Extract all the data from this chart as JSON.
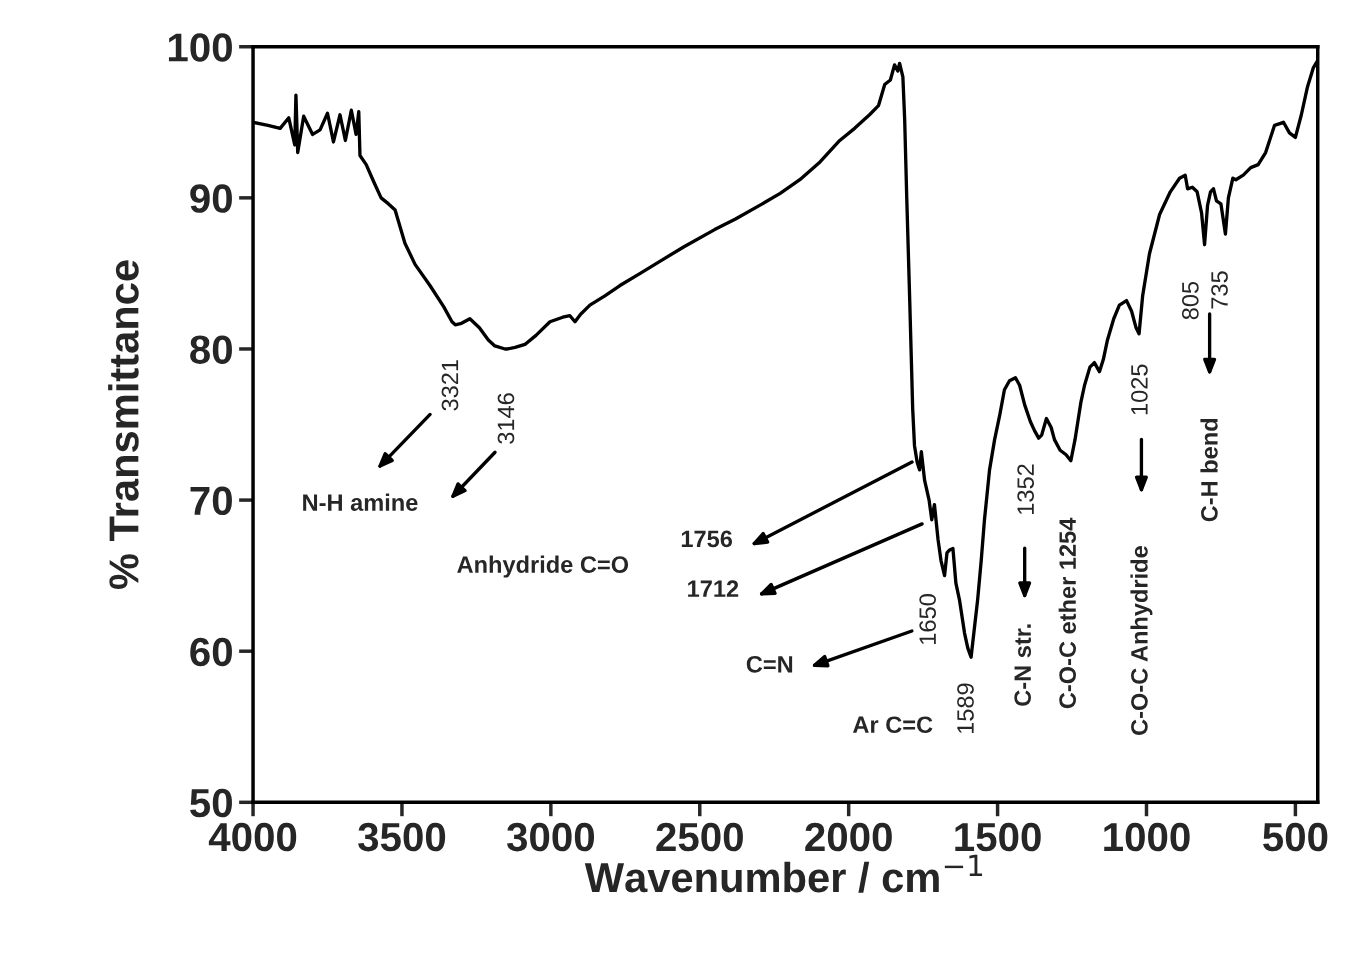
{
  "chart_data": {
    "type": "line",
    "xlabel": "Wavenumber / cm$^{−1}$",
    "ylabel": "% Transmittance",
    "xlim": [
      4000,
      425
    ],
    "ylim": [
      50,
      100
    ],
    "xticks": [
      4000,
      3500,
      3000,
      2500,
      2000,
      1500,
      1000,
      500
    ],
    "yticks": [
      50,
      60,
      70,
      80,
      90,
      100
    ],
    "grid": false,
    "marker": "none",
    "line_style": "solid",
    "series": [
      {
        "color": "#000000",
        "x": [
          4000,
          3950,
          3909,
          3880,
          3860,
          3856,
          3850,
          3830,
          3800,
          3775,
          3750,
          3730,
          3708,
          3690,
          3670,
          3654,
          3645,
          3641,
          3620,
          3600,
          3591,
          3570,
          3545,
          3523,
          3490,
          3456,
          3406,
          3360,
          3332,
          3321,
          3300,
          3272,
          3240,
          3210,
          3188,
          3154,
          3146,
          3120,
          3087,
          3050,
          3003,
          2960,
          2936,
          2919,
          2900,
          2869,
          2820,
          2768,
          2700,
          2634,
          2550,
          2450,
          2380,
          2299,
          2230,
          2164,
          2100,
          2030,
          1980,
          1930,
          1900,
          1879,
          1860,
          1846,
          1835,
          1829,
          1818,
          1812,
          1805,
          1795,
          1785,
          1779,
          1770,
          1762,
          1756,
          1745,
          1730,
          1721,
          1712,
          1700,
          1690,
          1678,
          1670,
          1661,
          1650,
          1640,
          1628,
          1611,
          1600,
          1589,
          1578,
          1567,
          1555,
          1544,
          1527,
          1510,
          1493,
          1477,
          1460,
          1440,
          1426,
          1409,
          1390,
          1376,
          1362,
          1352,
          1336,
          1320,
          1309,
          1290,
          1270,
          1254,
          1240,
          1220,
          1208,
          1190,
          1175,
          1158,
          1145,
          1131,
          1110,
          1091,
          1067,
          1050,
          1035,
          1025,
          1013,
          990,
          956,
          920,
          889,
          870,
          862,
          846,
          830,
          815,
          805,
          795,
          785,
          775,
          765,
          750,
          735,
          725,
          710,
          700,
          675,
          650,
          625,
          600,
          570,
          540,
          520,
          500,
          480,
          460,
          440,
          428
        ],
        "values": [
          95.0,
          94.8,
          94.6,
          95.3,
          93.5,
          96.8,
          93.0,
          95.4,
          94.2,
          94.5,
          95.6,
          93.7,
          95.5,
          93.8,
          95.8,
          94.2,
          95.7,
          92.8,
          92.2,
          91.3,
          90.9,
          90.0,
          89.6,
          89.2,
          87.0,
          85.6,
          84.2,
          82.8,
          81.8,
          81.6,
          81.7,
          82.0,
          81.4,
          80.6,
          80.2,
          80.0,
          80.0,
          80.1,
          80.3,
          80.9,
          81.8,
          82.1,
          82.2,
          81.8,
          82.3,
          82.9,
          83.5,
          84.2,
          85.0,
          85.8,
          86.8,
          87.9,
          88.6,
          89.5,
          90.3,
          91.2,
          92.3,
          93.8,
          94.6,
          95.5,
          96.1,
          97.5,
          97.8,
          98.8,
          98.4,
          98.9,
          98.0,
          95.2,
          90.0,
          83.2,
          76.0,
          73.6,
          72.5,
          72.0,
          73.2,
          71.3,
          70.0,
          68.7,
          69.7,
          67.4,
          66.0,
          65.0,
          66.5,
          66.7,
          66.8,
          64.5,
          63.4,
          61.2,
          60.2,
          59.6,
          61.5,
          63.4,
          66.0,
          68.7,
          72.0,
          74.0,
          75.6,
          77.3,
          77.9,
          78.1,
          77.6,
          76.3,
          75.2,
          74.6,
          74.1,
          74.3,
          75.4,
          74.8,
          74.0,
          73.3,
          73.0,
          72.6,
          74.0,
          76.5,
          77.6,
          78.8,
          79.1,
          78.5,
          79.3,
          80.6,
          82.0,
          82.9,
          83.2,
          82.5,
          81.4,
          81.0,
          83.5,
          86.3,
          88.9,
          90.4,
          91.3,
          91.5,
          90.6,
          90.7,
          90.4,
          89.0,
          86.9,
          89.5,
          90.4,
          90.6,
          89.8,
          89.6,
          87.6,
          90.0,
          91.3,
          91.2,
          91.5,
          92.0,
          92.2,
          93.0,
          94.8,
          95.0,
          94.3,
          94.0,
          95.5,
          97.3,
          98.6,
          99.0
        ]
      }
    ],
    "annotations": [
      "3321",
      "3146",
      "N-H amine",
      "1756",
      "Anhydride C=O",
      "1712",
      "1650",
      "C=N",
      "Ar C=C",
      "1589",
      "1352",
      "C-N str.",
      "C-O-C ether 1254",
      "1025",
      "C-O-C Anhydride",
      "805",
      "735",
      "C-H bend"
    ]
  }
}
